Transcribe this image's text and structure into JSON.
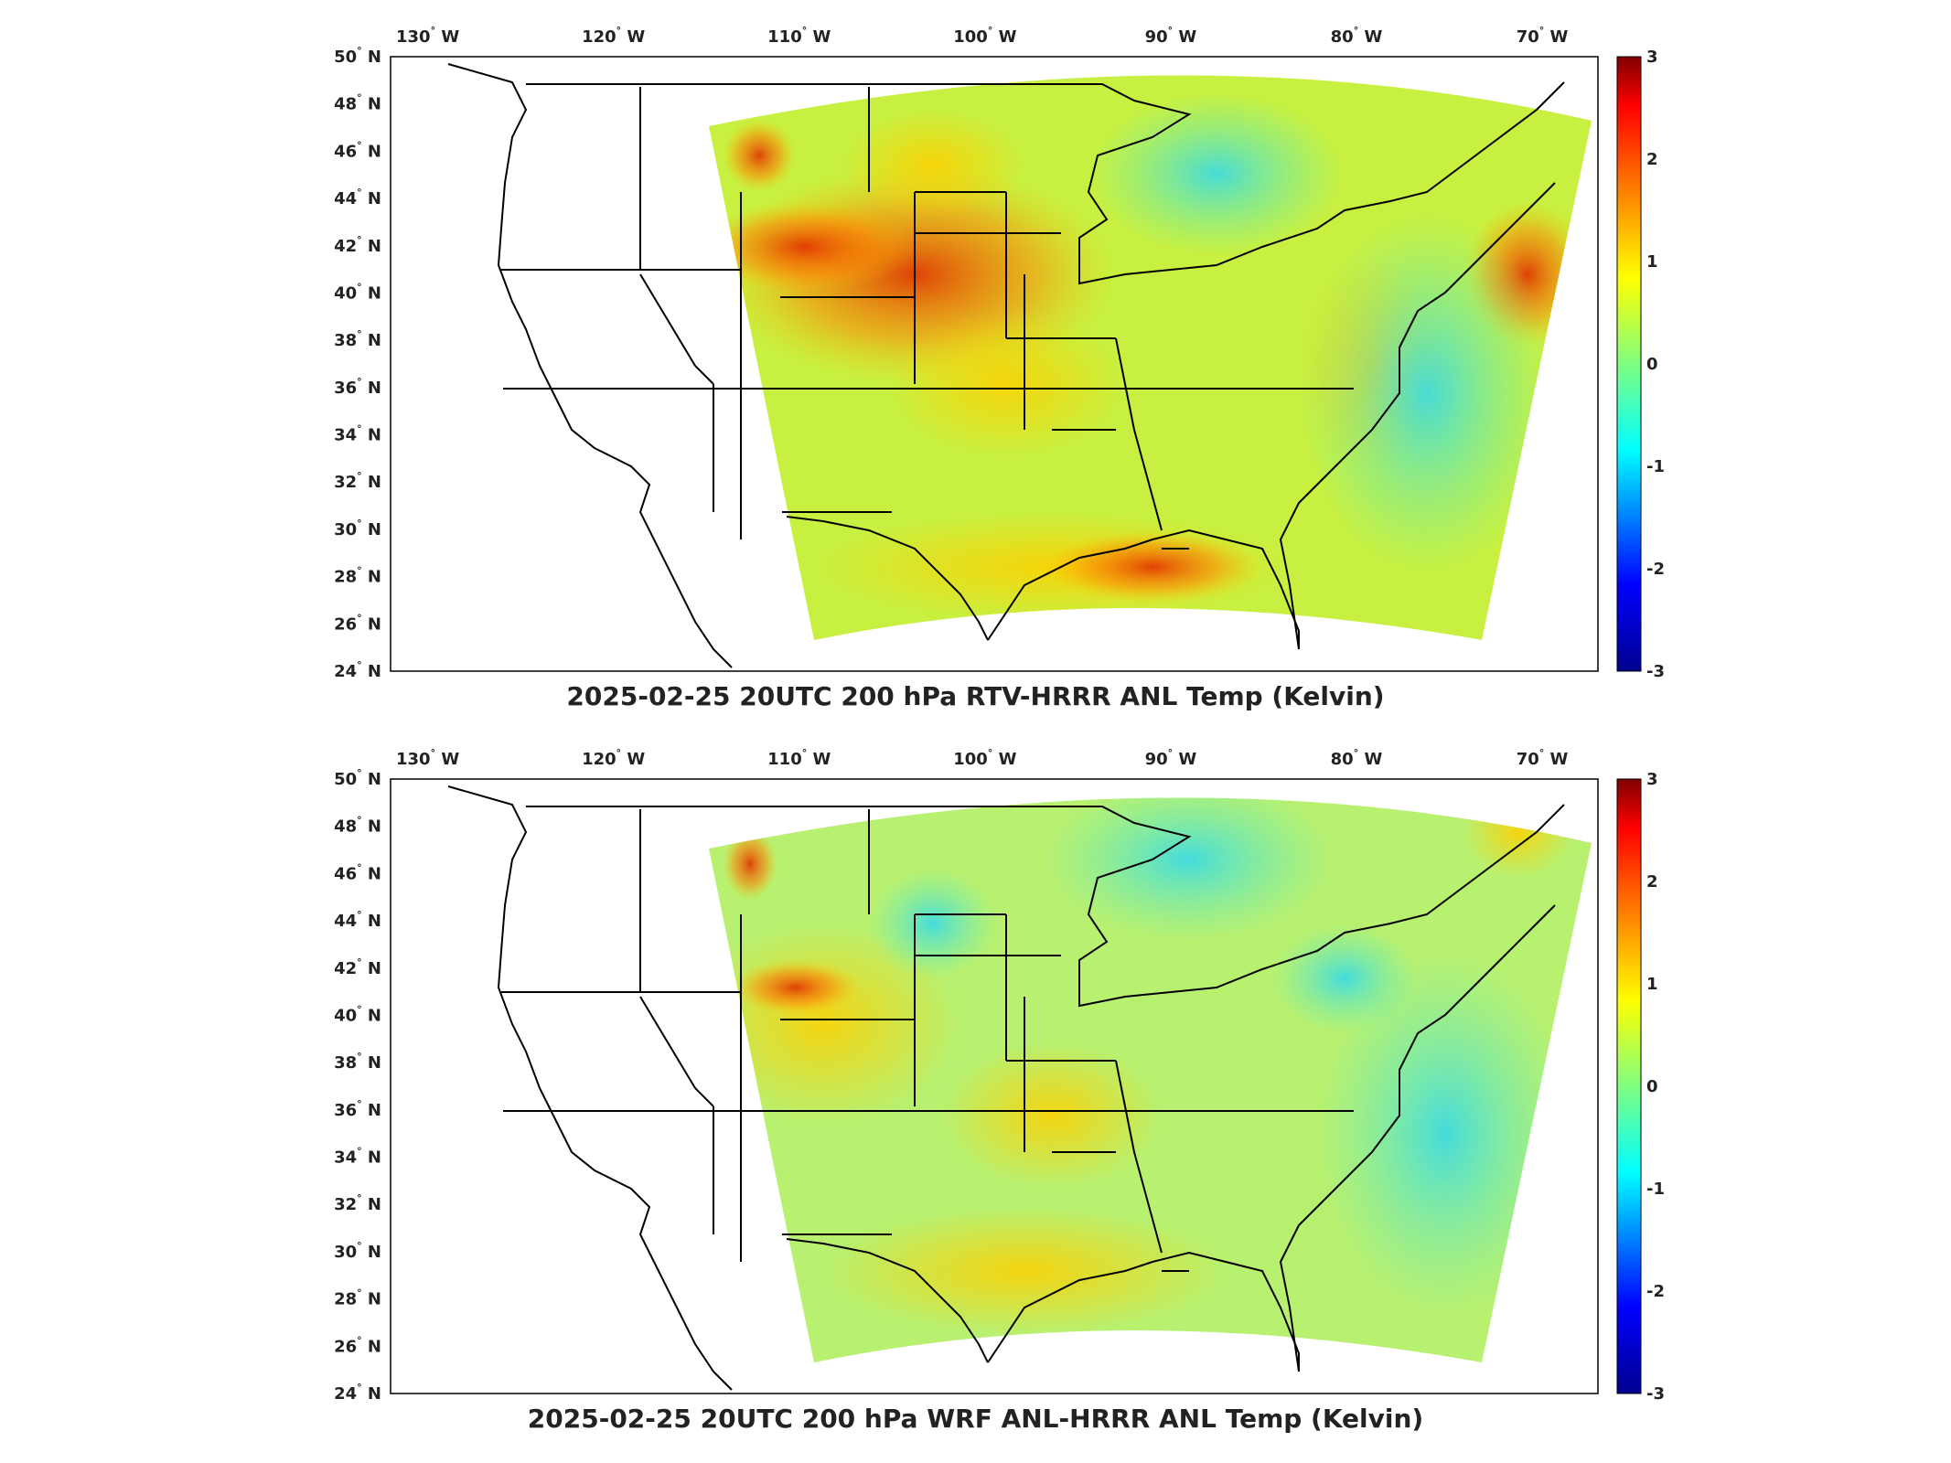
{
  "colors": {
    "colormap": [
      "#00008f",
      "#0000ff",
      "#00ffff",
      "#80ff80",
      "#ffff00",
      "#ff8000",
      "#ff0000",
      "#800000"
    ],
    "coast": "#000000",
    "frame": "#000000"
  },
  "axes": {
    "lon_ticks": [
      "130",
      "120",
      "110",
      "100",
      "90",
      "80",
      "70"
    ],
    "lon_hemisphere": "W",
    "lat_ticks": [
      "50",
      "48",
      "46",
      "44",
      "42",
      "40",
      "38",
      "36",
      "34",
      "32",
      "30",
      "28",
      "26",
      "24"
    ],
    "lat_hemisphere": "N",
    "degree_symbol": "°"
  },
  "colorbar": {
    "ticks": [
      "3",
      "2",
      "1",
      "0",
      "-1",
      "-2",
      "-3"
    ],
    "range": [
      -3,
      3
    ]
  },
  "panels": [
    {
      "title": "2025-02-25 20UTC 200 hPa RTV-HRRR ANL Temp (Kelvin)",
      "field": "RTV-HRRR ANL Temp difference",
      "warm_regions": [
        "Wyoming",
        "Colorado",
        "Nebraska",
        "Gulf Coast",
        "Mid-Atlantic coast"
      ],
      "cool_regions": [
        "Great Lakes",
        "Western Atlantic"
      ]
    },
    {
      "title": "2025-02-25 20UTC 200 hPa WRF ANL-HRRR ANL Temp (Kelvin)",
      "field": "WRF ANL-HRRR ANL Temp difference",
      "warm_regions": [
        "Idaho",
        "Wyoming",
        "Gulf Coast"
      ],
      "cool_regions": [
        "Great Lakes",
        "Montana",
        "Western Atlantic"
      ]
    }
  ]
}
